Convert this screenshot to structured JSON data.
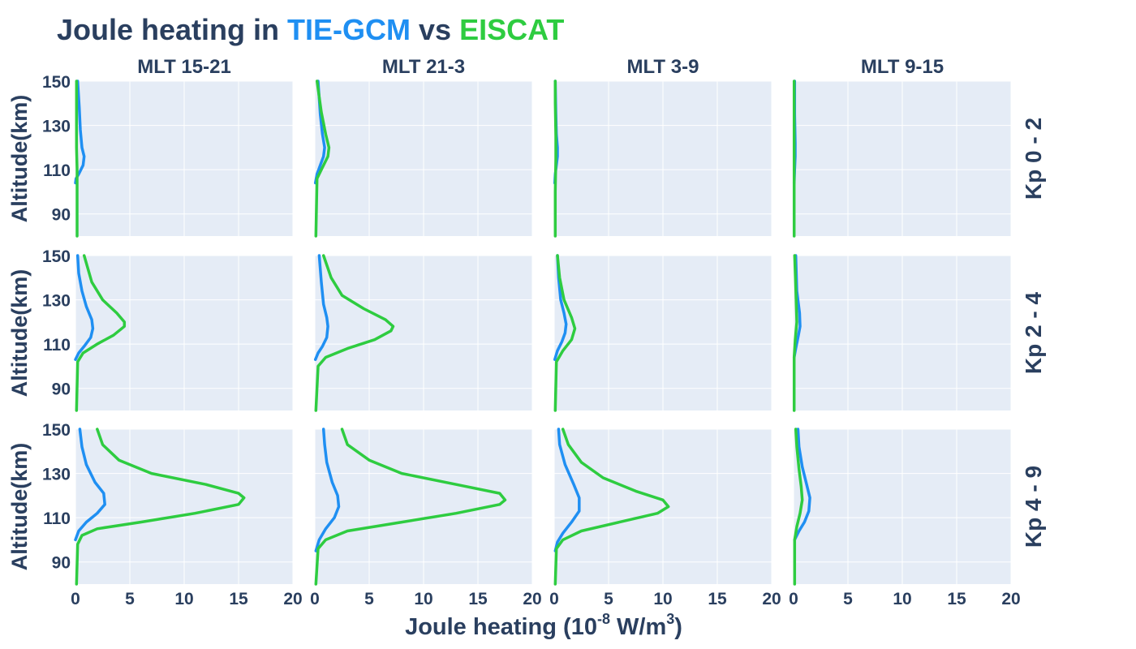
{
  "title": {
    "prefix": "Joule heating in ",
    "model": "TIE-GCM",
    "joiner": " vs ",
    "obs": "EISCAT"
  },
  "xlabel": {
    "base": "Joule heating (10",
    "exp": "-8",
    "mid": " W/m",
    "exp2": "3",
    "end": ")"
  },
  "ylabel": "Altitude(km)",
  "colors": {
    "model": "#1f8ff2",
    "obs": "#2ecc40",
    "text": "#2a3f5f",
    "panel_bg": "#e5ecf6",
    "grid": "#ffffff"
  },
  "chart_data": {
    "type": "line",
    "title": "Joule heating in TIE-GCM vs EISCAT",
    "xlabel": "Joule heating (10-8 W/m3)",
    "ylabel": "Altitude(km)",
    "xlim": [
      0,
      20
    ],
    "ylim": [
      80,
      150
    ],
    "xticks": [
      0,
      5,
      10,
      15,
      20
    ],
    "yticks": [
      90,
      110,
      130,
      150
    ],
    "grid": true,
    "columns": [
      "MLT 15-21",
      "MLT 21-3",
      "MLT 3-9",
      "MLT 9-15"
    ],
    "rows": [
      "Kp 0 - 2",
      "Kp 2 - 4",
      "Kp 4 - 9"
    ],
    "series_names": [
      "TIE-GCM",
      "EISCAT"
    ],
    "panels": [
      {
        "row": "Kp 0 - 2",
        "col": "MLT 15-21",
        "series": [
          {
            "name": "TIE-GCM",
            "x": [
              0.0,
              0.05,
              0.3,
              0.7,
              0.8,
              0.6,
              0.45,
              0.35,
              0.2
            ],
            "y": [
              104,
              106,
              108,
              112,
              116,
              120,
              128,
              138,
              150
            ]
          },
          {
            "name": "EISCAT",
            "x": [
              0.15,
              0.15,
              0.15,
              0.1,
              0.1,
              0.1,
              0.1
            ],
            "y": [
              80,
              100,
              110,
              120,
              130,
              140,
              150
            ]
          }
        ]
      },
      {
        "row": "Kp 0 - 2",
        "col": "MLT 21-3",
        "series": [
          {
            "name": "TIE-GCM",
            "x": [
              0.05,
              0.2,
              0.5,
              0.8,
              0.9,
              0.7,
              0.5,
              0.3
            ],
            "y": [
              104,
              108,
              112,
              116,
              120,
              126,
              135,
              150
            ]
          },
          {
            "name": "EISCAT",
            "x": [
              0.1,
              0.2,
              0.7,
              1.2,
              1.3,
              1.0,
              0.6,
              0.2
            ],
            "y": [
              80,
              106,
              111,
              116,
              120,
              126,
              136,
              150
            ]
          }
        ]
      },
      {
        "row": "Kp 0 - 2",
        "col": "MLT 3-9",
        "series": [
          {
            "name": "TIE-GCM",
            "x": [
              0.05,
              0.1,
              0.2,
              0.3,
              0.3,
              0.2,
              0.15,
              0.1
            ],
            "y": [
              104,
              108,
              112,
              116,
              120,
              126,
              136,
              150
            ]
          },
          {
            "name": "EISCAT",
            "x": [
              0.1,
              0.1,
              0.15,
              0.15,
              0.1,
              0.1
            ],
            "y": [
              80,
              100,
              115,
              125,
              140,
              150
            ]
          }
        ]
      },
      {
        "row": "Kp 0 - 2",
        "col": "MLT 9-15",
        "series": [
          {
            "name": "TIE-GCM",
            "x": [
              0.05,
              0.1,
              0.15,
              0.15,
              0.1,
              0.1
            ],
            "y": [
              104,
              110,
              116,
              122,
              135,
              150
            ]
          },
          {
            "name": "EISCAT",
            "x": [
              0.05,
              0.05,
              0.05,
              0.05,
              0.05
            ],
            "y": [
              80,
              100,
              115,
              130,
              150
            ]
          }
        ]
      },
      {
        "row": "Kp 2 - 4",
        "col": "MLT 15-21",
        "series": [
          {
            "name": "TIE-GCM",
            "x": [
              0.0,
              0.3,
              0.8,
              1.4,
              1.6,
              1.5,
              1.0,
              0.6,
              0.3,
              0.2
            ],
            "y": [
              103,
              106,
              109,
              113,
              117,
              121,
              127,
              134,
              142,
              150
            ]
          },
          {
            "name": "EISCAT",
            "x": [
              0.1,
              0.2,
              0.7,
              2.0,
              3.5,
              4.5,
              4.5,
              3.8,
              2.5,
              1.5,
              0.8
            ],
            "y": [
              80,
              102,
              106,
              110,
              114,
              118,
              120,
              124,
              130,
              138,
              150
            ]
          }
        ]
      },
      {
        "row": "Kp 2 - 4",
        "col": "MLT 21-3",
        "series": [
          {
            "name": "TIE-GCM",
            "x": [
              0.05,
              0.3,
              0.7,
              1.1,
              1.2,
              1.1,
              0.8,
              0.6,
              0.4
            ],
            "y": [
              103,
              106,
              109,
              113,
              118,
              122,
              128,
              138,
              150
            ]
          },
          {
            "name": "EISCAT",
            "x": [
              0.1,
              0.3,
              1.0,
              3.0,
              5.5,
              7.0,
              7.2,
              6.5,
              4.5,
              2.5,
              1.5,
              0.8
            ],
            "y": [
              80,
              100,
              104,
              108,
              112,
              116,
              118,
              121,
              126,
              132,
              140,
              150
            ]
          }
        ]
      },
      {
        "row": "Kp 2 - 4",
        "col": "MLT 3-9",
        "series": [
          {
            "name": "TIE-GCM",
            "x": [
              0.05,
              0.3,
              0.7,
              1.0,
              1.1,
              0.9,
              0.6,
              0.4,
              0.3
            ],
            "y": [
              103,
              107,
              111,
              115,
              119,
              124,
              130,
              140,
              150
            ]
          },
          {
            "name": "EISCAT",
            "x": [
              0.1,
              0.2,
              0.8,
              1.6,
              1.9,
              1.6,
              0.9,
              0.5,
              0.3
            ],
            "y": [
              80,
              102,
              107,
              112,
              117,
              122,
              130,
              140,
              150
            ]
          }
        ]
      },
      {
        "row": "Kp 2 - 4",
        "col": "MLT 9-15",
        "series": [
          {
            "name": "TIE-GCM",
            "x": [
              0.05,
              0.2,
              0.45,
              0.6,
              0.55,
              0.3,
              0.2
            ],
            "y": [
              104,
              108,
              114,
              118,
              124,
              134,
              150
            ]
          },
          {
            "name": "EISCAT",
            "x": [
              0.05,
              0.05,
              0.15,
              0.3,
              0.2,
              0.1
            ],
            "y": [
              80,
              104,
              112,
              120,
              135,
              150
            ]
          }
        ]
      },
      {
        "row": "Kp 4 - 9",
        "col": "MLT 15-21",
        "series": [
          {
            "name": "TIE-GCM",
            "x": [
              0.0,
              0.3,
              1.0,
              2.0,
              2.7,
              2.6,
              1.8,
              1.0,
              0.6,
              0.4
            ],
            "y": [
              100,
              104,
              108,
              112,
              116,
              121,
              126,
              134,
              142,
              150
            ]
          },
          {
            "name": "EISCAT",
            "x": [
              0.1,
              0.2,
              0.6,
              2.0,
              6.0,
              11.0,
              15.0,
              15.5,
              15.0,
              12.0,
              7.0,
              4.0,
              2.5,
              2.0
            ],
            "y": [
              80,
              98,
              102,
              105,
              108,
              112,
              116,
              119,
              121,
              125,
              130,
              136,
              143,
              150
            ]
          }
        ]
      },
      {
        "row": "Kp 4 - 9",
        "col": "MLT 21-3",
        "series": [
          {
            "name": "TIE-GCM",
            "x": [
              0.1,
              0.4,
              1.0,
              1.8,
              2.2,
              2.1,
              1.6,
              1.1,
              0.9,
              0.8
            ],
            "y": [
              95,
              100,
              105,
              110,
              115,
              120,
              126,
              135,
              143,
              150
            ]
          },
          {
            "name": "EISCAT",
            "x": [
              0.1,
              0.3,
              1.0,
              3.0,
              8.0,
              13.0,
              17.0,
              17.5,
              17.0,
              13.0,
              8.0,
              5.0,
              3.0,
              2.5
            ],
            "y": [
              80,
              96,
              100,
              104,
              108,
              112,
              116,
              118,
              121,
              125,
              130,
              136,
              143,
              150
            ]
          }
        ]
      },
      {
        "row": "Kp 4 - 9",
        "col": "MLT 3-9",
        "series": [
          {
            "name": "TIE-GCM",
            "x": [
              0.1,
              0.3,
              0.8,
              1.6,
              2.3,
              2.3,
              1.8,
              1.0,
              0.5,
              0.4
            ],
            "y": [
              95,
              99,
              103,
              108,
              113,
              119,
              125,
              134,
              143,
              150
            ]
          },
          {
            "name": "EISCAT",
            "x": [
              0.1,
              0.2,
              0.8,
              2.5,
              6.0,
              9.5,
              10.5,
              10.0,
              7.5,
              4.5,
              2.5,
              1.3,
              0.8
            ],
            "y": [
              80,
              96,
              100,
              104,
              108,
              112,
              115,
              118,
              122,
              128,
              135,
              143,
              150
            ]
          }
        ]
      },
      {
        "row": "Kp 4 - 9",
        "col": "MLT 9-15",
        "series": [
          {
            "name": "TIE-GCM",
            "x": [
              0.1,
              0.5,
              1.0,
              1.4,
              1.5,
              1.2,
              0.8,
              0.5,
              0.4
            ],
            "y": [
              100,
              104,
              108,
              113,
              119,
              125,
              133,
              142,
              150
            ]
          },
          {
            "name": "EISCAT",
            "x": [
              0.1,
              0.1,
              0.3,
              0.6,
              0.8,
              0.7,
              0.5,
              0.3,
              0.2
            ],
            "y": [
              80,
              100,
              106,
              112,
              118,
              124,
              132,
              142,
              150
            ]
          }
        ]
      }
    ]
  }
}
